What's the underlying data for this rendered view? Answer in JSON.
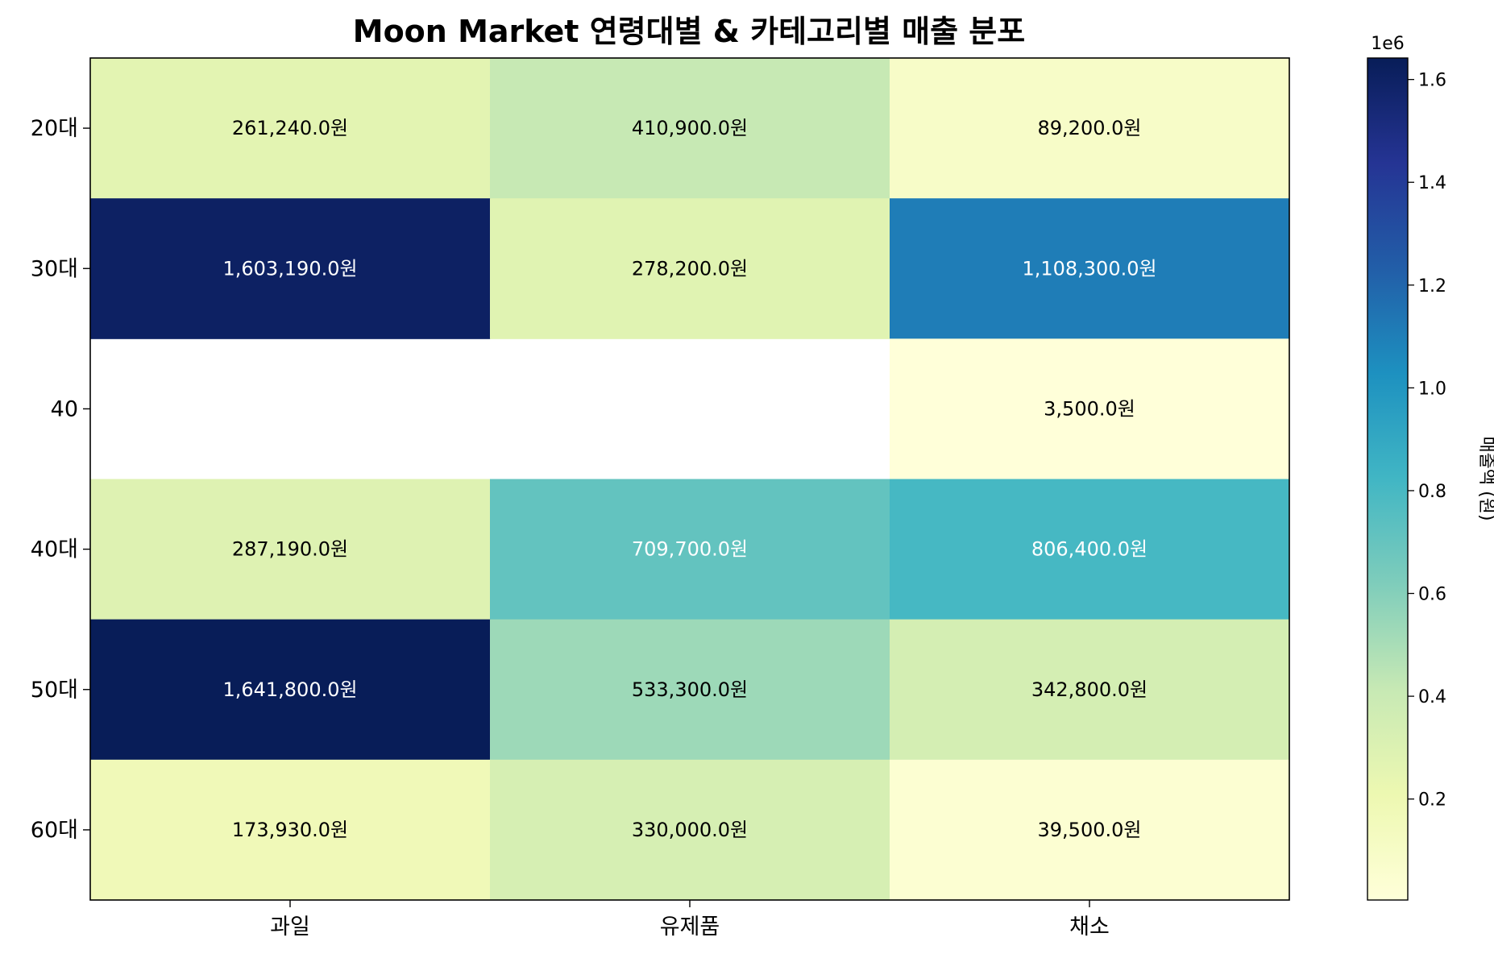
{
  "chart_data": {
    "type": "heatmap",
    "title": "Moon Market 연령대별 & 카테고리별 매출 분포",
    "x_categories": [
      "과일",
      "유제품",
      "채소"
    ],
    "y_categories": [
      "20대",
      "30대",
      "40",
      "40대",
      "50대",
      "60대"
    ],
    "values": [
      [
        261240,
        410900,
        89200
      ],
      [
        1603190,
        278200,
        1108300
      ],
      [
        null,
        null,
        3500
      ],
      [
        287190,
        709700,
        806400
      ],
      [
        1641800,
        533300,
        342800
      ],
      [
        173930,
        330000,
        39500
      ]
    ],
    "cell_labels": [
      [
        "261,240.0원",
        "410,900.0원",
        "89,200.0원"
      ],
      [
        "1,603,190.0원",
        "278,200.0원",
        "1,108,300.0원"
      ],
      [
        "",
        "",
        "3,500.0원"
      ],
      [
        "287,190.0원",
        "709,700.0원",
        "806,400.0원"
      ],
      [
        "1,641,800.0원",
        "533,300.0원",
        "342,800.0원"
      ],
      [
        "173,930.0원",
        "330,000.0원",
        "39,500.0원"
      ]
    ],
    "colormap": "YlGnBu",
    "colorbar": {
      "label": "매출액 (원)",
      "offset_label": "1e6",
      "range": [
        3500,
        1641800
      ],
      "ticks": [
        0.2,
        0.4,
        0.6,
        0.8,
        1.0,
        1.2,
        1.4,
        1.6
      ],
      "tick_labels": [
        "0.2",
        "0.4",
        "0.6",
        "0.8",
        "1.0",
        "1.2",
        "1.4",
        "1.6"
      ]
    }
  }
}
